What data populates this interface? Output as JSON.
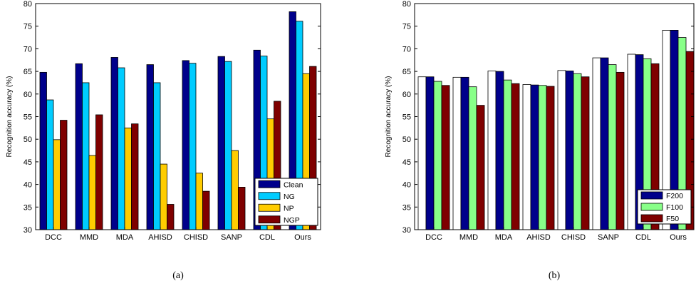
{
  "chart_data": [
    {
      "type": "bar",
      "caption": "(a)",
      "ylabel": "Recognition accuracy (%)",
      "ylim": [
        30,
        80
      ],
      "yticks": [
        30,
        35,
        40,
        45,
        50,
        55,
        60,
        65,
        70,
        75,
        80
      ],
      "categories": [
        "DCC",
        "MMD",
        "MDA",
        "AHISD",
        "CHISD",
        "SANP",
        "CDL",
        "Ours"
      ],
      "legend_position": "bottom-right",
      "series": [
        {
          "name": "Clean",
          "color": "#00008b",
          "values": [
            64.8,
            66.7,
            68.1,
            66.5,
            67.4,
            68.3,
            69.7,
            78.2
          ]
        },
        {
          "name": "NG",
          "color": "#00ccff",
          "values": [
            58.7,
            62.5,
            65.8,
            62.5,
            66.8,
            67.2,
            68.4,
            76.1
          ]
        },
        {
          "name": "NP",
          "color": "#ffcc00",
          "values": [
            49.9,
            46.4,
            52.5,
            44.5,
            42.5,
            47.5,
            54.5,
            64.5
          ]
        },
        {
          "name": "NGP",
          "color": "#7f0000",
          "values": [
            54.2,
            55.4,
            53.4,
            35.6,
            38.5,
            39.4,
            58.4,
            66.1
          ]
        }
      ]
    },
    {
      "type": "bar",
      "caption": "(b)",
      "ylabel": "Recognition accuracy (%)",
      "ylim": [
        30,
        80
      ],
      "yticks": [
        30,
        35,
        40,
        45,
        50,
        55,
        60,
        65,
        70,
        75,
        80
      ],
      "categories": [
        "DCC",
        "MMD",
        "MDA",
        "AHISD",
        "CHISD",
        "SANP",
        "CDL",
        "Ours"
      ],
      "legend_position": "bottom-right",
      "series": [
        {
          "name": "",
          "color": "#ffffff",
          "values": [
            63.8,
            63.7,
            65.1,
            62.1,
            65.2,
            68.0,
            68.8,
            74.1
          ]
        },
        {
          "name": "F200",
          "color": "#00008b",
          "values": [
            63.8,
            63.7,
            65.0,
            62.0,
            65.1,
            68.0,
            68.7,
            74.1
          ]
        },
        {
          "name": "F100",
          "color": "#88ff88",
          "values": [
            62.8,
            61.6,
            63.1,
            61.9,
            64.5,
            66.5,
            67.8,
            72.5
          ]
        },
        {
          "name": "F50",
          "color": "#7f0000",
          "values": [
            61.9,
            57.5,
            62.3,
            61.7,
            63.8,
            64.8,
            66.7,
            69.4
          ]
        }
      ]
    }
  ]
}
